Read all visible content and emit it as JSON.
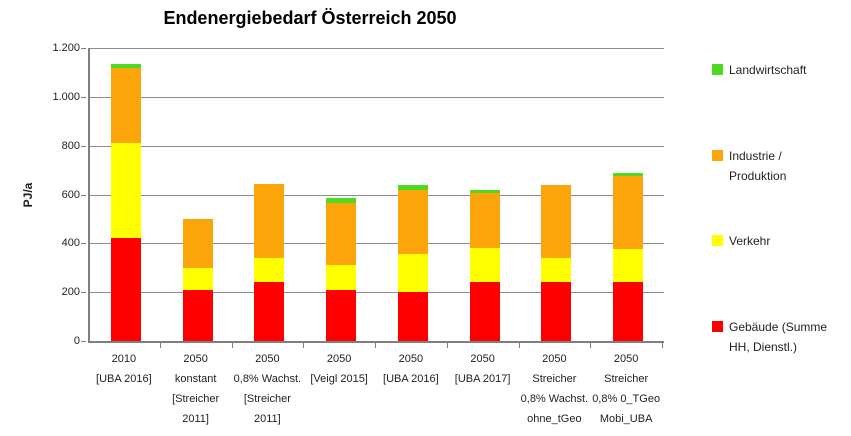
{
  "chart_data": {
    "type": "bar",
    "stacked": true,
    "title": "Endenergiebedarf Österreich 2050",
    "ylabel": "PJ/a",
    "ylim": [
      0,
      1200
    ],
    "ytick_step": 200,
    "ytick_labels": [
      "0",
      "200",
      "400",
      "600",
      "800",
      "1.000",
      "1.200"
    ],
    "grid": true,
    "legend_position": "right",
    "categories": [
      [
        "2010",
        "[UBA 2016]"
      ],
      [
        "2050",
        "konstant",
        "[Streicher",
        "2011]"
      ],
      [
        "2050",
        "0,8% Wachst.",
        "[Streicher",
        "2011]"
      ],
      [
        "2050",
        "[Veigl 2015]"
      ],
      [
        "2050",
        "[UBA 2016]"
      ],
      [
        "2050",
        "[UBA 2017]"
      ],
      [
        "2050",
        "Streicher",
        "0,8% Wachst.",
        "ohne_tGeo"
      ],
      [
        "2050",
        "Streicher",
        "0,8% 0_TGeo",
        "Mobi_UBA"
      ]
    ],
    "series": [
      {
        "name": "Gebäude (Summe HH, Dienstl.)",
        "color": "#fe0000",
        "values": [
          420,
          210,
          240,
          210,
          200,
          240,
          240,
          240
        ]
      },
      {
        "name": "Verkehr",
        "color": "#ffff00",
        "values": [
          390,
          90,
          100,
          100,
          155,
          140,
          100,
          135
        ]
      },
      {
        "name": "Industrie / Produktion",
        "color": "#fba50a",
        "values": [
          310,
          200,
          305,
          255,
          265,
          225,
          300,
          300
        ]
      },
      {
        "name": "Landwirtschaft",
        "color": "#4cdb22",
        "values": [
          15,
          0,
          0,
          20,
          20,
          15,
          0,
          15
        ]
      }
    ],
    "totals": [
      1135,
      500,
      645,
      585,
      640,
      620,
      640,
      690
    ],
    "legend": [
      {
        "name": "Landwirtschaft",
        "color": "#4cdb22",
        "lines": [
          "Landwirtschaft"
        ]
      },
      {
        "name": "Industrie / Produktion",
        "color": "#fba50a",
        "lines": [
          "Industrie /",
          "Produktion"
        ]
      },
      {
        "name": "Verkehr",
        "color": "#ffff00",
        "lines": [
          "Verkehr"
        ]
      },
      {
        "name": "Gebäude (Summe HH, Dienstl.)",
        "color": "#fe0000",
        "lines": [
          "Gebäude (Summe",
          "HH, Dienstl.)"
        ]
      }
    ]
  },
  "colors": {
    "gridline": "#8c8c8c",
    "axis": "#7f7f7f",
    "background": "#ffffff",
    "text": "#1f1f1f"
  }
}
